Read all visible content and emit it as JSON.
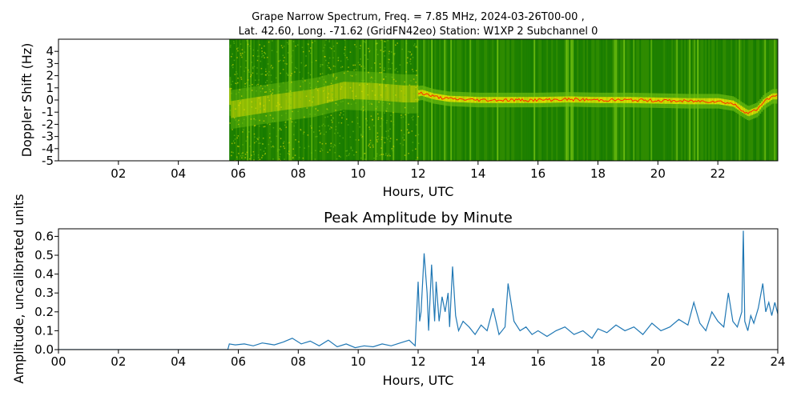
{
  "chart_data": [
    {
      "type": "heatmap",
      "title": "Grape Narrow Spectrum, Freq. = 7.85 MHz, 2024-03-26T00-00 ,",
      "subtitle": "Lat.  42.60, Long. -71.62 (GridFN42eo) Station: W1XP 2 Subchannel 0",
      "xlabel": "Hours, UTC",
      "ylabel": "Doppler Shift (Hz)",
      "xlim": [
        0,
        24
      ],
      "ylim": [
        -5,
        5
      ],
      "x_ticks": [
        2,
        4,
        6,
        8,
        10,
        12,
        14,
        16,
        18,
        20,
        22
      ],
      "x_tick_labels": [
        "02",
        "04",
        "06",
        "08",
        "10",
        "12",
        "14",
        "16",
        "18",
        "20",
        "22"
      ],
      "y_ticks": [
        4,
        3,
        2,
        1,
        0,
        -1,
        -2,
        -3,
        -4,
        -5
      ],
      "y_tick_labels": [
        "4",
        "3",
        "2",
        "1",
        "0",
        "-1",
        "-2",
        "-3",
        "-4",
        "-5"
      ],
      "data_start_hour": 5.7,
      "colors": {
        "background": "#2e8b00",
        "dark": "#157a00",
        "mid": "#6fbf10",
        "bright": "#e8e000",
        "peak": "#ff2a00"
      },
      "carrier_trace": {
        "x": [
          5.7,
          7,
          8.5,
          9.5,
          10.5,
          11.5,
          11.9,
          12.1,
          12.5,
          13,
          14,
          15,
          16,
          17,
          18,
          19,
          20,
          21,
          22,
          22.5,
          22.8,
          23,
          23.3,
          23.5,
          23.8
        ],
        "y": [
          -0.8,
          -0.3,
          0.2,
          0.8,
          0.7,
          0.5,
          0.5,
          0.6,
          0.3,
          0.1,
          0.0,
          0.0,
          0.0,
          0.05,
          0.0,
          0.0,
          -0.05,
          -0.1,
          -0.1,
          -0.3,
          -0.8,
          -1.1,
          -0.8,
          -0.2,
          0.3
        ]
      }
    },
    {
      "type": "line",
      "title": "Peak Amplitude by Minute",
      "xlabel": "Hours, UTC",
      "ylabel": "Amplitude, uncalibrated units",
      "xlim": [
        0,
        24
      ],
      "ylim": [
        0,
        0.64
      ],
      "x_ticks": [
        0,
        2,
        4,
        6,
        8,
        10,
        12,
        14,
        16,
        18,
        20,
        22,
        24
      ],
      "x_tick_labels": [
        "00",
        "02",
        "04",
        "06",
        "08",
        "10",
        "12",
        "14",
        "16",
        "18",
        "20",
        "22",
        "24"
      ],
      "y_ticks": [
        0.0,
        0.1,
        0.2,
        0.3,
        0.4,
        0.5,
        0.6
      ],
      "y_tick_labels": [
        "0.0",
        "0.1",
        "0.2",
        "0.3",
        "0.4",
        "0.5",
        "0.6"
      ],
      "color": "#1f77b4",
      "series": [
        {
          "x": [
            0,
            5.65,
            5.7,
            5.9,
            6.2,
            6.5,
            6.8,
            7.0,
            7.2,
            7.5,
            7.8,
            8.1,
            8.4,
            8.7,
            9.0,
            9.3,
            9.6,
            9.9,
            10.2,
            10.5,
            10.8,
            11.1,
            11.4,
            11.7,
            11.9,
            12.0,
            12.05,
            12.1,
            12.2,
            12.3,
            12.35,
            12.45,
            12.55,
            12.6,
            12.7,
            12.8,
            12.9,
            13.0,
            13.05,
            13.15,
            13.25,
            13.35,
            13.5,
            13.7,
            13.9,
            14.1,
            14.3,
            14.5,
            14.7,
            14.9,
            15.0,
            15.2,
            15.4,
            15.6,
            15.8,
            16.0,
            16.3,
            16.6,
            16.9,
            17.2,
            17.5,
            17.8,
            18.0,
            18.3,
            18.6,
            18.9,
            19.2,
            19.5,
            19.8,
            20.1,
            20.4,
            20.7,
            21.0,
            21.2,
            21.4,
            21.6,
            21.8,
            22.0,
            22.2,
            22.35,
            22.5,
            22.65,
            22.8,
            22.85,
            22.9,
            23.0,
            23.1,
            23.2,
            23.35,
            23.5,
            23.6,
            23.7,
            23.8,
            23.9,
            24.0
          ],
          "y": [
            0.0,
            0.0,
            0.03,
            0.025,
            0.03,
            0.02,
            0.035,
            0.03,
            0.025,
            0.04,
            0.06,
            0.03,
            0.045,
            0.02,
            0.05,
            0.015,
            0.03,
            0.01,
            0.02,
            0.015,
            0.03,
            0.02,
            0.035,
            0.05,
            0.02,
            0.36,
            0.15,
            0.2,
            0.51,
            0.3,
            0.1,
            0.45,
            0.15,
            0.36,
            0.15,
            0.28,
            0.2,
            0.3,
            0.12,
            0.44,
            0.18,
            0.1,
            0.15,
            0.12,
            0.08,
            0.13,
            0.1,
            0.22,
            0.08,
            0.12,
            0.35,
            0.15,
            0.1,
            0.12,
            0.08,
            0.1,
            0.07,
            0.1,
            0.12,
            0.08,
            0.1,
            0.06,
            0.11,
            0.09,
            0.13,
            0.1,
            0.12,
            0.08,
            0.14,
            0.1,
            0.12,
            0.16,
            0.13,
            0.25,
            0.14,
            0.1,
            0.2,
            0.15,
            0.12,
            0.3,
            0.15,
            0.12,
            0.2,
            0.63,
            0.15,
            0.1,
            0.18,
            0.14,
            0.22,
            0.35,
            0.2,
            0.25,
            0.18,
            0.25,
            0.19
          ]
        }
      ]
    }
  ]
}
